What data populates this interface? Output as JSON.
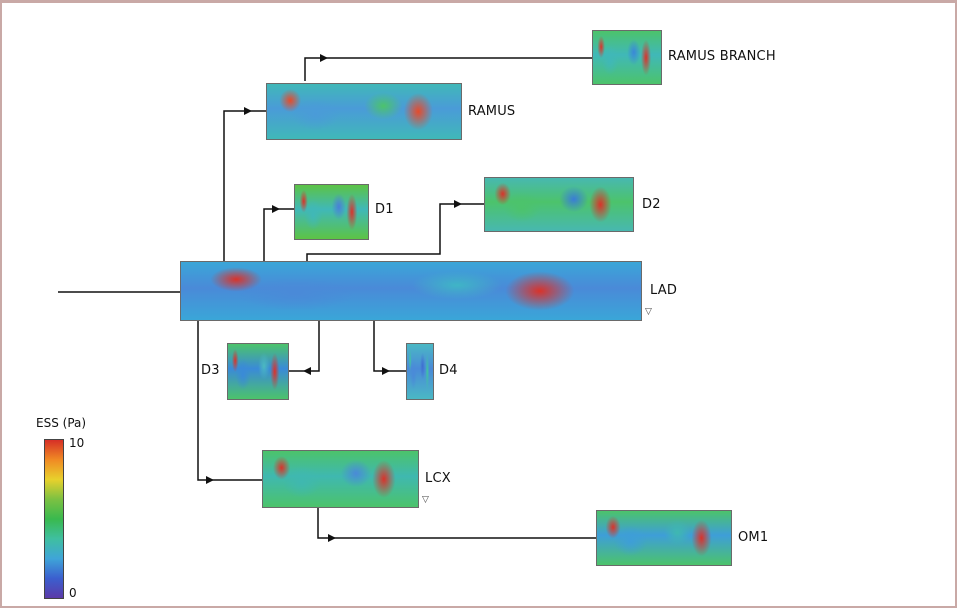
{
  "legend": {
    "title": "ESS (Pa)",
    "max_label": "10",
    "min_label": "0",
    "colors": [
      "#d62f27",
      "#f08a24",
      "#e8d12c",
      "#7cc142",
      "#39b94e",
      "#3fbfa0",
      "#3fa5d8",
      "#3b5fcf",
      "#5b3aa8"
    ]
  },
  "segments": [
    {
      "id": "lad",
      "label": "LAD",
      "colors": [
        "#3aa6d8",
        "#4a8ad8",
        "#3fb5c6",
        "#4cc36b"
      ],
      "hot": "#d9332a",
      "marker": "▽"
    },
    {
      "id": "ramus",
      "label": "RAMUS",
      "colors": [
        "#40b8b8",
        "#4a9bd8",
        "#4cc36b"
      ],
      "hot": "#e64b2a"
    },
    {
      "id": "ramus-branch",
      "label": "RAMUS BRANCH",
      "colors": [
        "#4cc36b",
        "#40b8b8",
        "#3a88d8"
      ],
      "hot": "#d9332a"
    },
    {
      "id": "d1",
      "label": "D1",
      "colors": [
        "#5cc345",
        "#40b8b8",
        "#4a7fd8"
      ],
      "hot": "#d9332a"
    },
    {
      "id": "d2",
      "label": "D2",
      "colors": [
        "#48b8b0",
        "#4cc36b",
        "#3a7cd8"
      ],
      "hot": "#d9332a"
    },
    {
      "id": "d3",
      "label": "D3",
      "colors": [
        "#4cc36b",
        "#3a8ad8",
        "#4bb9c0"
      ],
      "hot": "#d9332a"
    },
    {
      "id": "d4",
      "label": "D4",
      "colors": [
        "#4ab8c4",
        "#4a8ad8",
        "#3e6fd0"
      ],
      "hot": "#3ec6a0"
    },
    {
      "id": "lcx",
      "label": "LCX",
      "colors": [
        "#4cc36b",
        "#3fb8b0",
        "#4a8ad8"
      ],
      "hot": "#d9332a",
      "marker": "▽"
    },
    {
      "id": "om1",
      "label": "OM1",
      "colors": [
        "#4cc36b",
        "#3e9ed8",
        "#3fb8b0"
      ],
      "hot": "#d9332a"
    }
  ]
}
